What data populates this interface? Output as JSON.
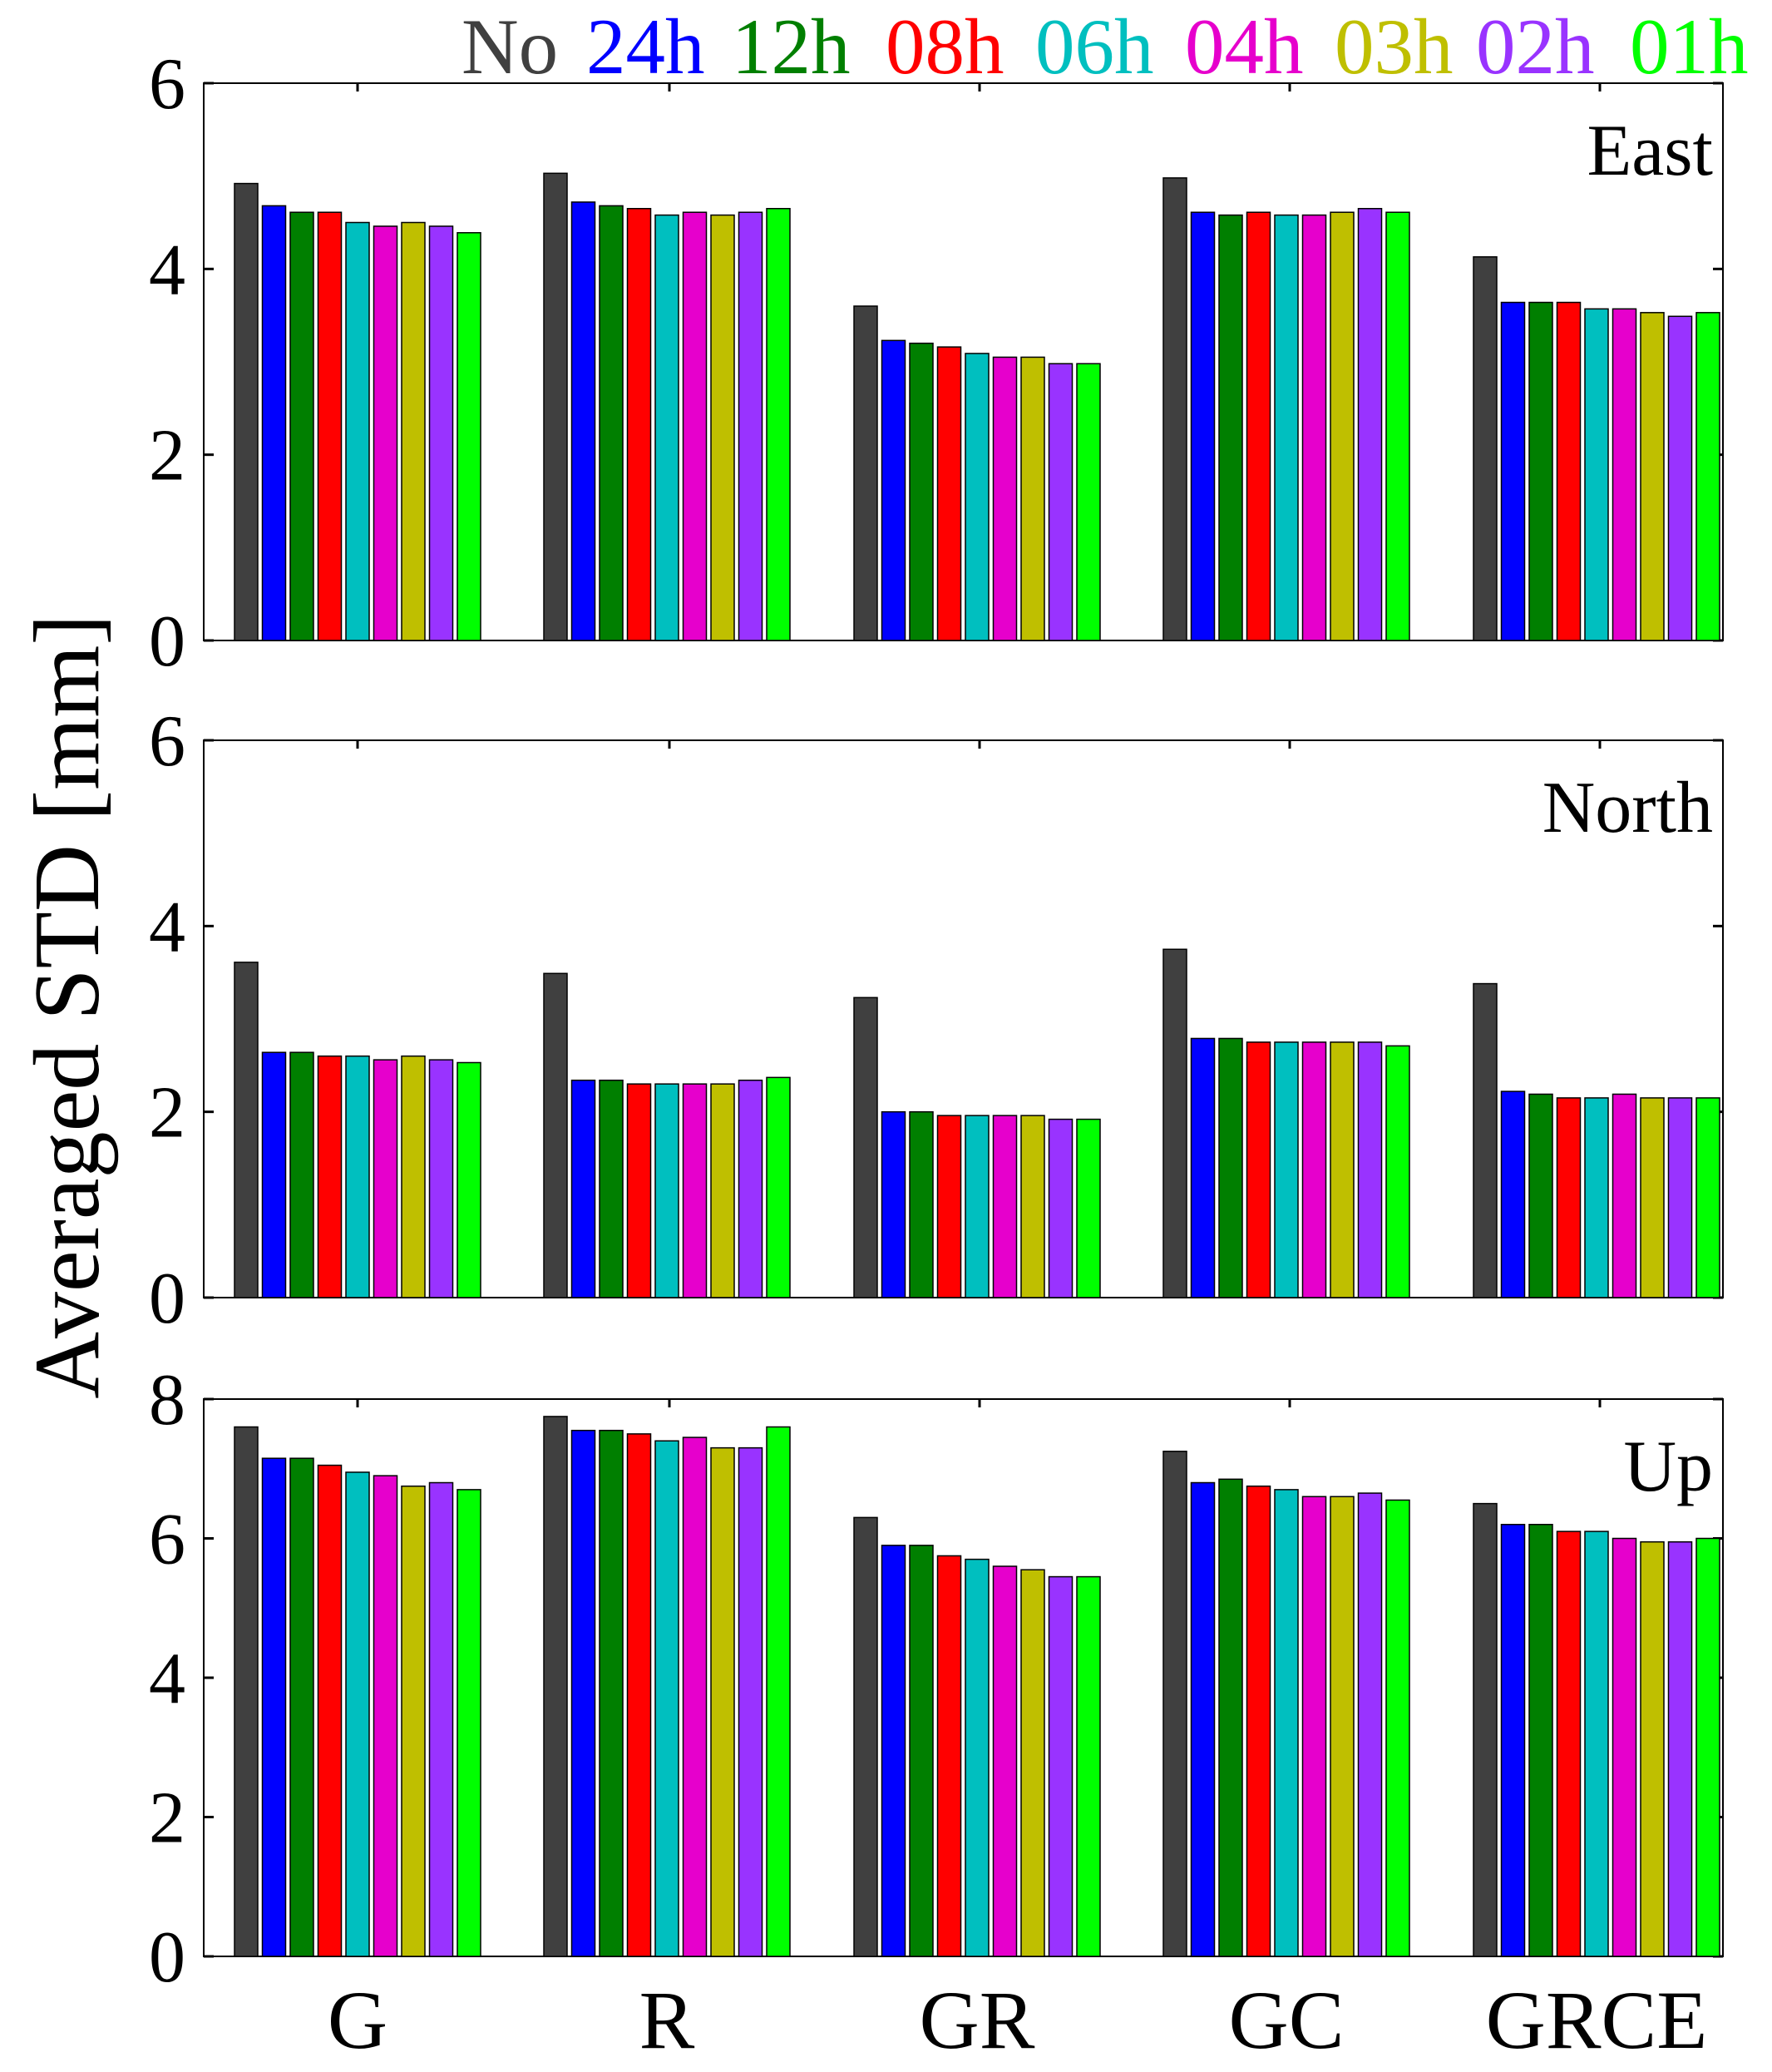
{
  "chart_data": {
    "type": "bar",
    "title": "",
    "ylabel": "Averaged STD [mm]",
    "xlabel": "",
    "categories": [
      "G",
      "R",
      "GR",
      "GC",
      "GRCE"
    ],
    "series_names": [
      "No",
      "24h",
      "12h",
      "08h",
      "06h",
      "04h",
      "03h",
      "02h",
      "01h"
    ],
    "series_colors": [
      "#404040",
      "#0000ff",
      "#007f00",
      "#ff0000",
      "#00bfbf",
      "#e600cc",
      "#bfbf00",
      "#9933ff",
      "#00ff00"
    ],
    "panels": [
      {
        "label": "East",
        "ylim": [
          0,
          6
        ],
        "yticks": [
          "0",
          "2",
          "4",
          "6"
        ],
        "values": [
          [
            4.92,
            4.68,
            4.61,
            4.61,
            4.5,
            4.46,
            4.5,
            4.46,
            4.39
          ],
          [
            5.03,
            4.72,
            4.68,
            4.65,
            4.58,
            4.61,
            4.58,
            4.61,
            4.65
          ],
          [
            3.6,
            3.23,
            3.2,
            3.16,
            3.09,
            3.05,
            3.05,
            2.98,
            2.98
          ],
          [
            4.98,
            4.61,
            4.58,
            4.61,
            4.58,
            4.58,
            4.61,
            4.65,
            4.61
          ],
          [
            4.13,
            3.64,
            3.64,
            3.64,
            3.57,
            3.57,
            3.53,
            3.49,
            3.53
          ]
        ]
      },
      {
        "label": "North",
        "ylim": [
          0,
          6
        ],
        "yticks": [
          "0",
          "2",
          "4",
          "6"
        ],
        "values": [
          [
            3.61,
            2.64,
            2.64,
            2.6,
            2.6,
            2.56,
            2.6,
            2.56,
            2.53
          ],
          [
            3.49,
            2.34,
            2.34,
            2.3,
            2.3,
            2.3,
            2.3,
            2.34,
            2.37
          ],
          [
            3.23,
            2.0,
            2.0,
            1.96,
            1.96,
            1.96,
            1.96,
            1.92,
            1.92
          ],
          [
            3.75,
            2.79,
            2.79,
            2.75,
            2.75,
            2.75,
            2.75,
            2.75,
            2.71
          ],
          [
            3.38,
            2.22,
            2.19,
            2.15,
            2.15,
            2.19,
            2.15,
            2.15,
            2.15
          ]
        ]
      },
      {
        "label": "Up",
        "ylim": [
          0,
          8
        ],
        "yticks": [
          "0",
          "2",
          "4",
          "6",
          "8"
        ],
        "values": [
          [
            7.6,
            7.15,
            7.15,
            7.05,
            6.95,
            6.9,
            6.75,
            6.8,
            6.7
          ],
          [
            7.75,
            7.55,
            7.55,
            7.5,
            7.4,
            7.45,
            7.3,
            7.3,
            7.6
          ],
          [
            6.3,
            5.9,
            5.9,
            5.75,
            5.7,
            5.6,
            5.55,
            5.45,
            5.45
          ],
          [
            7.25,
            6.8,
            6.85,
            6.75,
            6.7,
            6.6,
            6.6,
            6.65,
            6.55
          ],
          [
            6.5,
            6.2,
            6.2,
            6.1,
            6.1,
            6.0,
            5.95,
            5.95,
            6.0
          ]
        ]
      }
    ]
  }
}
